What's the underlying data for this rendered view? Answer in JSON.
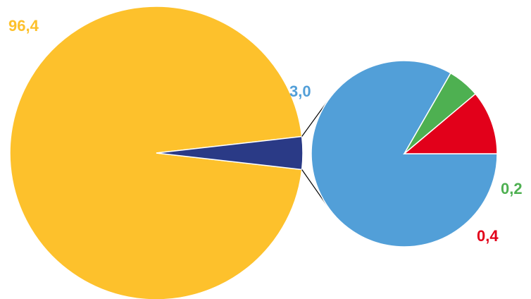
{
  "chart_data": {
    "type": "pie",
    "main_pie": {
      "slices": [
        {
          "value": 96.4,
          "label": "96,4",
          "color": "#FDC12C"
        },
        {
          "value": 3.6,
          "label": "",
          "color": "#2A3A86"
        }
      ]
    },
    "detail_pie": {
      "slices": [
        {
          "value": 3.0,
          "label": "3,0",
          "color": "#529FD8"
        },
        {
          "value": 0.2,
          "label": "0,2",
          "color": "#4EB051"
        },
        {
          "value": 0.4,
          "label": "0,4",
          "color": "#E2001A"
        }
      ]
    },
    "connector_color": "#000000"
  }
}
